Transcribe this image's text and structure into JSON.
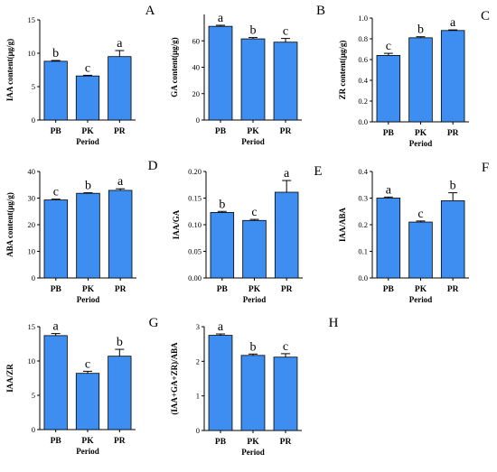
{
  "chart_data": [
    {
      "type": "bar",
      "panel_label": "A",
      "ylabel": "IAA content(μg/g)",
      "xlabel": "Period",
      "categories": [
        "PB",
        "PK",
        "PR"
      ],
      "values": [
        8.8,
        6.6,
        9.5
      ],
      "errors": [
        0.12,
        0.1,
        0.9
      ],
      "letters": [
        "b",
        "c",
        "a"
      ],
      "ylim": [
        0,
        15
      ],
      "yticks": [
        0,
        5,
        10,
        15
      ],
      "ytick_labels": [
        "0",
        "5",
        "10",
        "15"
      ]
    },
    {
      "type": "bar",
      "panel_label": "B",
      "ylabel": "GA content(μg/g)",
      "xlabel": "Period",
      "categories": [
        "PB",
        "PK",
        "PR"
      ],
      "values": [
        71,
        61.5,
        59
      ],
      "errors": [
        0.8,
        1.0,
        2.8
      ],
      "letters": [
        "a",
        "b",
        "c"
      ],
      "ylim": [
        0,
        80
      ],
      "yticks": [
        0,
        20,
        40,
        60
      ],
      "ytick_labels": [
        "0",
        "20",
        "40",
        "60"
      ]
    },
    {
      "type": "bar",
      "panel_label": "C",
      "ylabel": "ZR content(μg/g)",
      "xlabel": "Period",
      "categories": [
        "PB",
        "PK",
        "PR"
      ],
      "values": [
        0.64,
        0.81,
        0.88
      ],
      "errors": [
        0.02,
        0.01,
        0.006
      ],
      "letters": [
        "c",
        "b",
        "a"
      ],
      "ylim": [
        0,
        1.0
      ],
      "yticks": [
        0,
        0.2,
        0.4,
        0.6,
        0.8,
        1.0
      ],
      "ytick_labels": [
        "0.0",
        "0.2",
        "0.4",
        "0.6",
        "0.8",
        "1.0"
      ]
    },
    {
      "type": "bar",
      "panel_label": "D",
      "ylabel": "ABA content(μg/g)",
      "xlabel": "Period",
      "categories": [
        "PB",
        "PK",
        "PR"
      ],
      "values": [
        29.3,
        31.8,
        32.9
      ],
      "errors": [
        0.3,
        0.2,
        0.6
      ],
      "letters": [
        "c",
        "b",
        "a"
      ],
      "ylim": [
        0,
        40
      ],
      "yticks": [
        0,
        10,
        20,
        30,
        40
      ],
      "ytick_labels": [
        "0",
        "10",
        "20",
        "30",
        "40"
      ]
    },
    {
      "type": "bar",
      "panel_label": "E",
      "ylabel": "IAA/GA",
      "xlabel": "Period",
      "categories": [
        "PB",
        "PK",
        "PR"
      ],
      "values": [
        0.123,
        0.108,
        0.161
      ],
      "errors": [
        0.002,
        0.002,
        0.022
      ],
      "letters": [
        "b",
        "c",
        "a"
      ],
      "ylim": [
        0,
        0.2
      ],
      "yticks": [
        0,
        0.05,
        0.1,
        0.15,
        0.2
      ],
      "ytick_labels": [
        "0.00",
        "0.05",
        "0.10",
        "0.15",
        "0.20"
      ]
    },
    {
      "type": "bar",
      "panel_label": "F",
      "ylabel": "IAA/ABA",
      "xlabel": "Period",
      "categories": [
        "PB",
        "PK",
        "PR"
      ],
      "values": [
        0.3,
        0.21,
        0.29
      ],
      "errors": [
        0.004,
        0.004,
        0.03
      ],
      "letters": [
        "a",
        "c",
        "b"
      ],
      "ylim": [
        0,
        0.4
      ],
      "yticks": [
        0,
        0.1,
        0.2,
        0.3,
        0.4
      ],
      "ytick_labels": [
        "0.0",
        "0.1",
        "0.2",
        "0.3",
        "0.4"
      ]
    },
    {
      "type": "bar",
      "panel_label": "G",
      "ylabel": "IAA/ZR",
      "xlabel": "Period",
      "categories": [
        "PB",
        "PK",
        "PR"
      ],
      "values": [
        13.7,
        8.2,
        10.7
      ],
      "errors": [
        0.3,
        0.3,
        1.0
      ],
      "letters": [
        "a",
        "c",
        "b"
      ],
      "ylim": [
        0,
        15
      ],
      "yticks": [
        0,
        5,
        10,
        15
      ],
      "ytick_labels": [
        "0",
        "5",
        "10",
        "15"
      ]
    },
    {
      "type": "bar",
      "panel_label": "H",
      "ylabel": "(IAA+GA+ZR)/ABA",
      "xlabel": "Period",
      "categories": [
        "PB",
        "PK",
        "PR"
      ],
      "values": [
        2.75,
        2.17,
        2.12
      ],
      "errors": [
        0.04,
        0.04,
        0.1
      ],
      "letters": [
        "a",
        "b",
        "c"
      ],
      "ylim": [
        0,
        3
      ],
      "yticks": [
        0,
        1,
        2,
        3
      ],
      "ytick_labels": [
        "0",
        "1",
        "2",
        "3"
      ]
    }
  ],
  "style": {
    "bar_color": "#3d8ef0",
    "bar_stroke": "#000000",
    "axis_color": "#000000"
  }
}
